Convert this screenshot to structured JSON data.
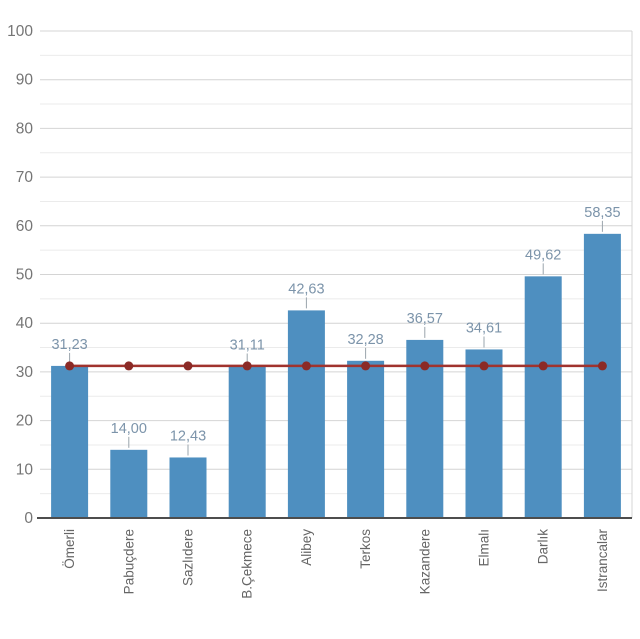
{
  "chart_data": {
    "type": "bar",
    "title": "",
    "xlabel": "",
    "ylabel": "",
    "categories": [
      "Ömerli",
      "Pabuçdere",
      "Sazlıdere",
      "B.Çekmece",
      "Alibey",
      "Terkos",
      "Kazandere",
      "Elmalı",
      "Darlık",
      "Istrancalar"
    ],
    "values": [
      31.23,
      14.0,
      12.43,
      31.11,
      42.63,
      32.28,
      36.57,
      34.61,
      49.62,
      58.35
    ],
    "value_labels": [
      "31,23",
      "14,00",
      "12,43",
      "31,11",
      "42,63",
      "32,28",
      "36,57",
      "34,61",
      "49,62",
      "58,35"
    ],
    "reference_line": {
      "value": 31.23,
      "show_markers": true
    },
    "ylim": [
      0,
      100
    ],
    "ytick_step_major": 10,
    "ytick_step_minor": 5,
    "ytick_labels": [
      "0",
      "10",
      "20",
      "30",
      "40",
      "50",
      "60",
      "70",
      "80",
      "90",
      "100"
    ],
    "grid": "major-and-minor",
    "legend_position": "none",
    "x_label_rotation": -90
  },
  "colors": {
    "background": "#ffffff",
    "bar": "#4E8FC0",
    "reference_line": "#A0332E",
    "reference_marker": "#8B2A26",
    "value_label": "#7C94AA",
    "leader_tick": "#9AA4AC",
    "y_tick_text": "#757575",
    "x_tick_text": "#666666",
    "grid_major": "#D4D4D4",
    "grid_minor": "#EBEBEB",
    "axis_line": "#4D4D4D",
    "plot_border_right": "#D4D4D4"
  }
}
